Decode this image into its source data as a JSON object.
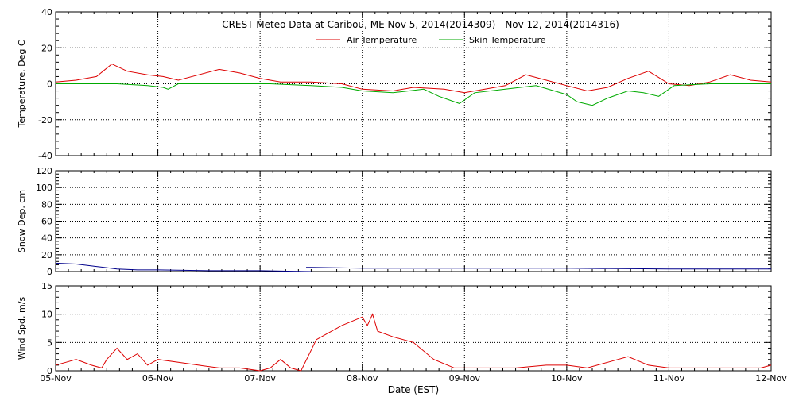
{
  "chart_data": {
    "type": "line",
    "title": "CREST Meteo Data at Caribou, ME   Nov  5, 2014(2014309) - Nov 12, 2014(2014316)",
    "xlabel": "Date (EST)",
    "x_ticks": [
      "05-Nov",
      "06-Nov",
      "07-Nov",
      "08-Nov",
      "09-Nov",
      "10-Nov",
      "11-Nov",
      "12-Nov"
    ],
    "xlim": [
      0,
      7
    ],
    "colors": {
      "air": "#dd0000",
      "skin": "#00aa00",
      "snow": "#00008b",
      "wind": "#dd0000"
    },
    "panels": [
      {
        "ylabel": "Temperature, Deg C",
        "ylim": [
          -40,
          40
        ],
        "yticks": [
          -40,
          -20,
          0,
          20,
          40
        ],
        "legend_position": "top-center",
        "series": [
          {
            "name": "Air Temperature",
            "color_key": "air",
            "x": [
              0,
              0.2,
              0.4,
              0.55,
              0.7,
              0.9,
              1.05,
              1.2,
              1.4,
              1.6,
              1.8,
              2.0,
              2.2,
              2.5,
              2.8,
              3.0,
              3.3,
              3.5,
              3.8,
              4.0,
              4.2,
              4.4,
              4.6,
              4.8,
              5.0,
              5.2,
              5.4,
              5.6,
              5.8,
              6.0,
              6.2,
              6.4,
              6.6,
              6.8,
              7.0
            ],
            "y": [
              1,
              2,
              4,
              11,
              7,
              5,
              4,
              2,
              5,
              8,
              6,
              3,
              1,
              1,
              0,
              -3,
              -4,
              -2,
              -3,
              -5,
              -3,
              -1,
              5,
              2,
              -1,
              -4,
              -2,
              3,
              7,
              0,
              -1,
              1,
              5,
              2,
              1
            ]
          },
          {
            "name": "Skin Temperature",
            "color_key": "skin",
            "x": [
              0,
              0.3,
              0.6,
              0.9,
              1.05,
              1.1,
              1.2,
              1.5,
              1.8,
              2.1,
              2.5,
              2.8,
              3.0,
              3.3,
              3.6,
              3.75,
              3.85,
              3.95,
              4.1,
              4.4,
              4.7,
              5.0,
              5.1,
              5.25,
              5.4,
              5.6,
              5.75,
              5.9,
              6.05,
              6.4,
              6.8,
              7.0
            ],
            "y": [
              0,
              0,
              0,
              -1,
              -2,
              -3,
              0,
              0,
              0,
              0,
              -1,
              -2,
              -4,
              -5,
              -3,
              -7,
              -9,
              -11,
              -5,
              -3,
              -1,
              -6,
              -10,
              -12,
              -8,
              -4,
              -5,
              -7,
              -1,
              0,
              0,
              0
            ]
          }
        ]
      },
      {
        "ylabel": "Snow Dep, cm",
        "ylim": [
          0,
          120
        ],
        "yticks": [
          0,
          20,
          40,
          60,
          80,
          100,
          120
        ],
        "series": [
          {
            "name": "",
            "color_key": "snow",
            "x": [
              0,
              0.2,
              0.4,
              0.6,
              0.8,
              1.0,
              1.5,
              2.0,
              2.5,
              "",
              2.45,
              2.5,
              3.0,
              4.0,
              5.0,
              6.0,
              7.0
            ],
            "y": [
              10,
              9,
              6,
              3,
              2,
              2,
              1,
              1,
              0,
              "",
              5,
              5,
              4,
              4,
              4,
              3,
              3
            ]
          }
        ]
      },
      {
        "ylabel": "Wind Spd, m/s",
        "ylim": [
          0,
          15
        ],
        "yticks": [
          0,
          5,
          10,
          15
        ],
        "series": [
          {
            "name": "",
            "color_key": "wind",
            "x": [
              0,
              0.1,
              0.2,
              0.35,
              0.45,
              0.5,
              0.6,
              0.7,
              0.8,
              0.9,
              1.0,
              1.2,
              1.4,
              1.6,
              1.8,
              2.0,
              2.1,
              2.2,
              2.3,
              2.4,
              2.55,
              2.6,
              2.8,
              3.0,
              3.05,
              3.1,
              3.15,
              3.3,
              3.5,
              3.7,
              3.9,
              4.0,
              4.2,
              4.5,
              4.8,
              5.0,
              5.2,
              5.4,
              5.6,
              5.8,
              6.0,
              6.3,
              6.6,
              6.9,
              7.0
            ],
            "y": [
              1,
              1.5,
              2,
              1,
              0.5,
              2,
              4,
              2,
              3,
              1,
              2,
              1.5,
              1,
              0.5,
              0.5,
              0,
              0.5,
              2,
              0.5,
              0,
              5.5,
              6,
              8,
              9.5,
              8,
              10,
              7,
              6,
              5,
              2,
              0.5,
              0.5,
              0.5,
              0.5,
              1,
              1,
              0.5,
              1.5,
              2.5,
              1,
              0.5,
              0.5,
              0.5,
              0.5,
              1
            ]
          }
        ]
      }
    ]
  }
}
